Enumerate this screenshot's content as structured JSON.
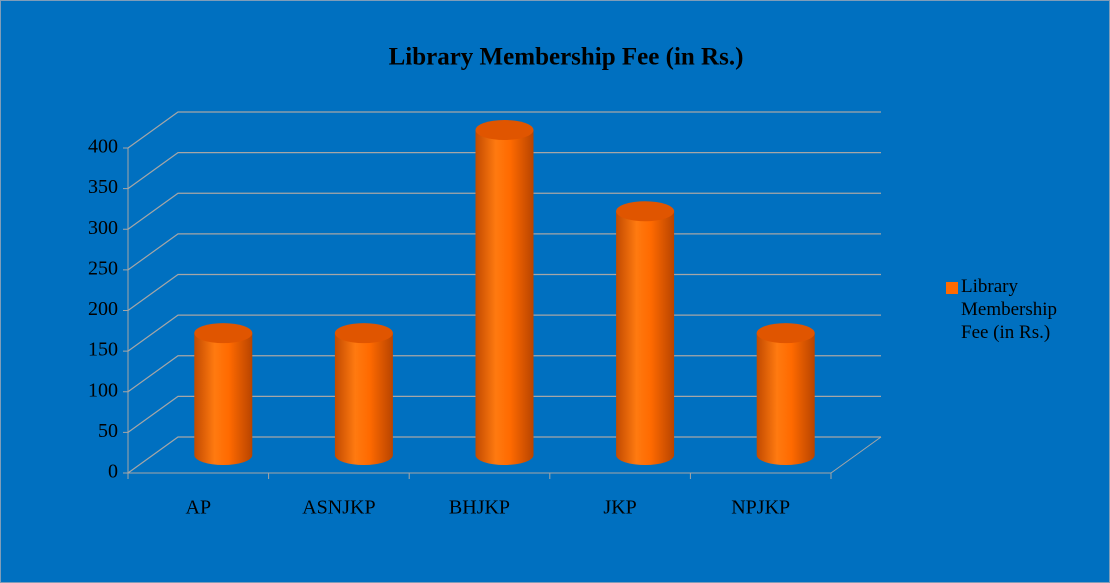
{
  "chart_data": {
    "type": "bar3d",
    "title": "Library Membership Fee (in Rs.)",
    "categories": [
      "AP",
      "ASNJKP",
      "BHJKP",
      "JKP",
      "NPJKP"
    ],
    "series": [
      {
        "name": "Library Membership Fee (in Rs.)",
        "color": "#ff6a00",
        "values": [
          150,
          150,
          400,
          300,
          150
        ]
      }
    ],
    "ylim": [
      0,
      400
    ],
    "yticks": [
      0,
      50,
      100,
      150,
      200,
      250,
      300,
      350,
      400
    ],
    "grid": true,
    "legend": "right"
  }
}
